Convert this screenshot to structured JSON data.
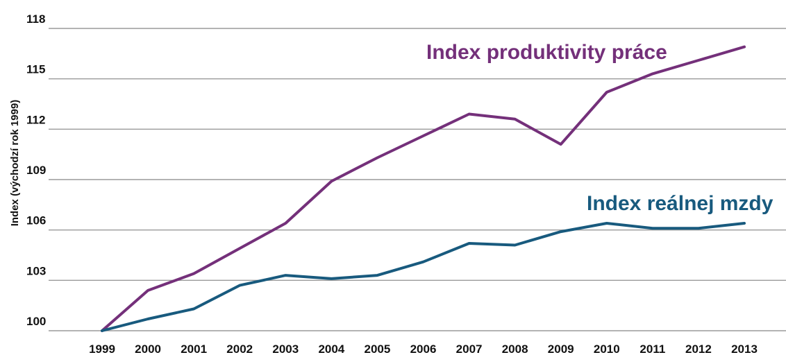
{
  "chart_data": {
    "type": "line",
    "title": "",
    "xlabel": "",
    "ylabel": "Index (východzí rok 1999)",
    "x": [
      "1999",
      "2000",
      "2001",
      "2002",
      "2003",
      "2004",
      "2005",
      "2006",
      "2007",
      "2008",
      "2009",
      "2010",
      "2011",
      "2012",
      "2013"
    ],
    "y_ticks": [
      100,
      103,
      106,
      109,
      112,
      115,
      118
    ],
    "ylim": [
      100,
      118
    ],
    "grid": true,
    "series": [
      {
        "name": "Index produktivity práce",
        "color": "#74307a",
        "values": [
          100.0,
          102.4,
          103.4,
          104.9,
          106.4,
          108.9,
          110.3,
          111.6,
          112.9,
          112.6,
          111.1,
          114.2,
          115.3,
          116.1,
          116.9
        ]
      },
      {
        "name": "Index reálnej mzdy",
        "color": "#185a7e",
        "values": [
          100.0,
          100.7,
          101.3,
          102.7,
          103.3,
          103.1,
          103.3,
          104.1,
          105.2,
          105.1,
          105.9,
          106.4,
          106.1,
          106.1,
          106.4
        ]
      }
    ]
  }
}
